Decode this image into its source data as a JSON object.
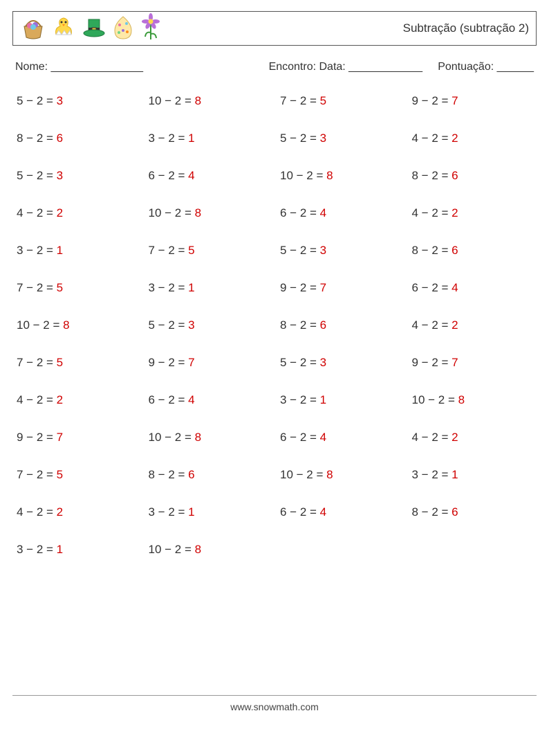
{
  "header": {
    "title": "Subtração (subtração 2)",
    "icons": [
      "basket-icon",
      "chick-icon",
      "hat-icon",
      "egg-icon",
      "flower-icon"
    ]
  },
  "meta": {
    "name_label": "Nome: _______________",
    "date_label": "Encontro: Data: ____________",
    "score_label": "Pontuação: ______"
  },
  "style": {
    "text_color": "#333333",
    "answer_color": "#d00000",
    "border_color": "#555555",
    "font_size_problem": 17,
    "font_size_title": 17,
    "font_size_meta": 16,
    "columns": 4,
    "rows": 13
  },
  "problems": [
    [
      {
        "a": 5,
        "b": 2,
        "r": 3
      },
      {
        "a": 10,
        "b": 2,
        "r": 8
      },
      {
        "a": 7,
        "b": 2,
        "r": 5
      },
      {
        "a": 9,
        "b": 2,
        "r": 7
      }
    ],
    [
      {
        "a": 8,
        "b": 2,
        "r": 6
      },
      {
        "a": 3,
        "b": 2,
        "r": 1
      },
      {
        "a": 5,
        "b": 2,
        "r": 3
      },
      {
        "a": 4,
        "b": 2,
        "r": 2
      }
    ],
    [
      {
        "a": 5,
        "b": 2,
        "r": 3
      },
      {
        "a": 6,
        "b": 2,
        "r": 4
      },
      {
        "a": 10,
        "b": 2,
        "r": 8
      },
      {
        "a": 8,
        "b": 2,
        "r": 6
      }
    ],
    [
      {
        "a": 4,
        "b": 2,
        "r": 2
      },
      {
        "a": 10,
        "b": 2,
        "r": 8
      },
      {
        "a": 6,
        "b": 2,
        "r": 4
      },
      {
        "a": 4,
        "b": 2,
        "r": 2
      }
    ],
    [
      {
        "a": 3,
        "b": 2,
        "r": 1
      },
      {
        "a": 7,
        "b": 2,
        "r": 5
      },
      {
        "a": 5,
        "b": 2,
        "r": 3
      },
      {
        "a": 8,
        "b": 2,
        "r": 6
      }
    ],
    [
      {
        "a": 7,
        "b": 2,
        "r": 5
      },
      {
        "a": 3,
        "b": 2,
        "r": 1
      },
      {
        "a": 9,
        "b": 2,
        "r": 7
      },
      {
        "a": 6,
        "b": 2,
        "r": 4
      }
    ],
    [
      {
        "a": 10,
        "b": 2,
        "r": 8
      },
      {
        "a": 5,
        "b": 2,
        "r": 3
      },
      {
        "a": 8,
        "b": 2,
        "r": 6
      },
      {
        "a": 4,
        "b": 2,
        "r": 2
      }
    ],
    [
      {
        "a": 7,
        "b": 2,
        "r": 5
      },
      {
        "a": 9,
        "b": 2,
        "r": 7
      },
      {
        "a": 5,
        "b": 2,
        "r": 3
      },
      {
        "a": 9,
        "b": 2,
        "r": 7
      }
    ],
    [
      {
        "a": 4,
        "b": 2,
        "r": 2
      },
      {
        "a": 6,
        "b": 2,
        "r": 4
      },
      {
        "a": 3,
        "b": 2,
        "r": 1
      },
      {
        "a": 10,
        "b": 2,
        "r": 8
      }
    ],
    [
      {
        "a": 9,
        "b": 2,
        "r": 7
      },
      {
        "a": 10,
        "b": 2,
        "r": 8
      },
      {
        "a": 6,
        "b": 2,
        "r": 4
      },
      {
        "a": 4,
        "b": 2,
        "r": 2
      }
    ],
    [
      {
        "a": 7,
        "b": 2,
        "r": 5
      },
      {
        "a": 8,
        "b": 2,
        "r": 6
      },
      {
        "a": 10,
        "b": 2,
        "r": 8
      },
      {
        "a": 3,
        "b": 2,
        "r": 1
      }
    ],
    [
      {
        "a": 4,
        "b": 2,
        "r": 2
      },
      {
        "a": 3,
        "b": 2,
        "r": 1
      },
      {
        "a": 6,
        "b": 2,
        "r": 4
      },
      {
        "a": 8,
        "b": 2,
        "r": 6
      }
    ],
    [
      {
        "a": 3,
        "b": 2,
        "r": 1
      },
      {
        "a": 10,
        "b": 2,
        "r": 8
      }
    ]
  ],
  "footer": {
    "url": "www.snowmath.com"
  }
}
